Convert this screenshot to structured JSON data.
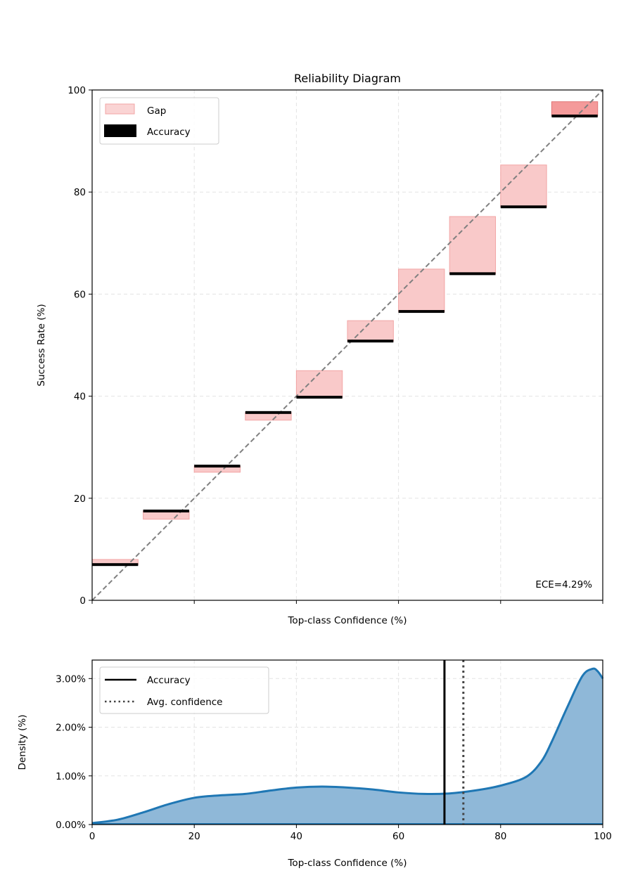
{
  "chart_data": [
    {
      "type": "bar",
      "title": "Reliability Diagram",
      "xlabel": "Top-class Confidence (%)",
      "ylabel": "Success Rate (%)",
      "xlim": [
        0,
        100
      ],
      "ylim": [
        0,
        100
      ],
      "yticks": [
        "0",
        "20",
        "40",
        "60",
        "80",
        "100"
      ],
      "grid": true,
      "legend": {
        "placement": "top-left",
        "entries": [
          "Gap",
          "Accuracy"
        ]
      },
      "annotation": "ECE=4.29%",
      "colors": {
        "gap_fill": "#f9c9c9",
        "gap_edge": "#f2a5a5",
        "gap_last_fill": "#f49a9a",
        "gap_last_edge": "#e07575",
        "accuracy": "#000000",
        "diagonal": "#808080"
      },
      "bins": [
        {
          "x_start": 0,
          "x_end": 9,
          "accuracy": 7.0,
          "confidence": 8.0
        },
        {
          "x_start": 10,
          "x_end": 19,
          "accuracy": 17.5,
          "confidence": 15.9
        },
        {
          "x_start": 20,
          "x_end": 29,
          "accuracy": 26.3,
          "confidence": 25.1
        },
        {
          "x_start": 30,
          "x_end": 39,
          "accuracy": 36.8,
          "confidence": 35.3
        },
        {
          "x_start": 40,
          "x_end": 49,
          "accuracy": 39.8,
          "confidence": 45.0
        },
        {
          "x_start": 50,
          "x_end": 59,
          "accuracy": 50.8,
          "confidence": 54.8
        },
        {
          "x_start": 60,
          "x_end": 69,
          "accuracy": 56.6,
          "confidence": 64.9
        },
        {
          "x_start": 70,
          "x_end": 79,
          "accuracy": 64.0,
          "confidence": 75.2
        },
        {
          "x_start": 80,
          "x_end": 89,
          "accuracy": 77.1,
          "confidence": 85.3
        },
        {
          "x_start": 90,
          "x_end": 99,
          "accuracy": 94.9,
          "confidence": 97.7
        }
      ]
    },
    {
      "type": "area",
      "xlabel": "Top-class Confidence (%)",
      "ylabel": "Density (%)",
      "xlim": [
        0,
        100
      ],
      "ylim": [
        0,
        3.38
      ],
      "xticks": [
        "0",
        "20",
        "40",
        "60",
        "80",
        "100"
      ],
      "yticks": [
        "0.00%",
        "1.00%",
        "2.00%",
        "3.00%"
      ],
      "grid": true,
      "legend": {
        "placement": "top-left",
        "entries": [
          "Accuracy",
          "Avg. confidence"
        ]
      },
      "accuracy": 69.0,
      "avg_confidence": 72.7,
      "colors": {
        "line": "#1f77b4",
        "fill": "#8fb8d8",
        "accuracy": "#000000",
        "avg_confidence": "#444444"
      },
      "x": [
        0,
        5,
        10,
        15,
        20,
        25,
        30,
        35,
        40,
        45,
        50,
        55,
        60,
        65,
        70,
        75,
        80,
        85,
        88,
        90,
        93,
        96,
        98,
        99,
        100
      ],
      "y": [
        0.03,
        0.1,
        0.25,
        0.42,
        0.55,
        0.6,
        0.63,
        0.7,
        0.76,
        0.78,
        0.76,
        0.72,
        0.66,
        0.63,
        0.64,
        0.7,
        0.8,
        0.98,
        1.3,
        1.7,
        2.4,
        3.05,
        3.2,
        3.15,
        3.0
      ]
    }
  ]
}
